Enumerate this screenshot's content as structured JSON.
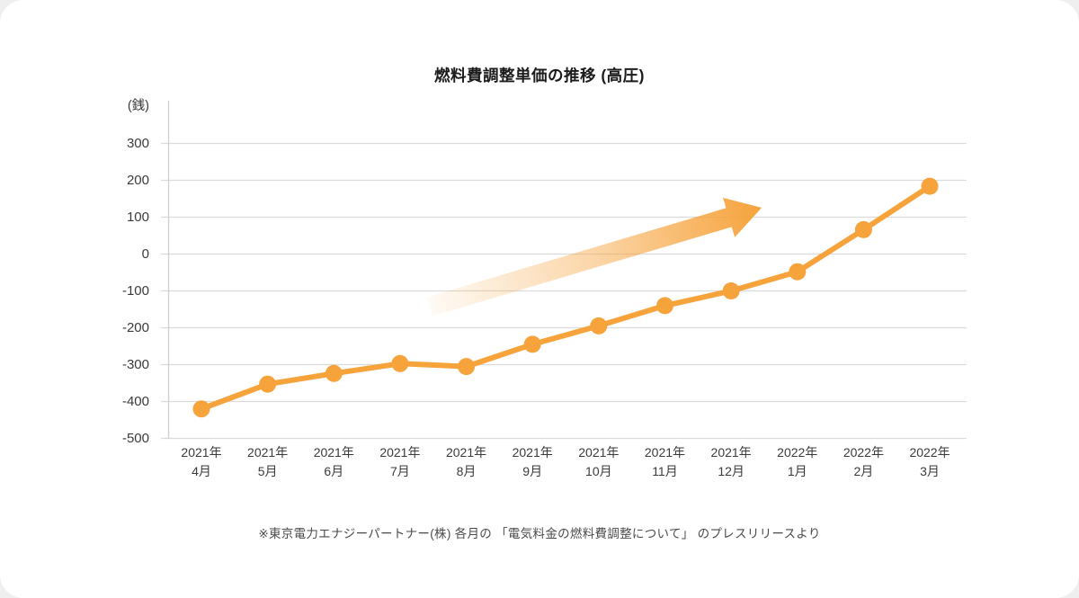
{
  "card": {
    "footnote": "※東京電力エナジーパートナー(株) 各月の 「電気料金の燃料費調整について」 のプレスリリースより"
  },
  "chart_data": {
    "type": "line",
    "title": "燃料費調整単価の推移 (高圧)",
    "unit_label": "(銭)",
    "ylabel": "銭",
    "xlabel": "",
    "categories": [
      {
        "year": "2021年",
        "month": "4月"
      },
      {
        "year": "2021年",
        "month": "5月"
      },
      {
        "year": "2021年",
        "month": "6月"
      },
      {
        "year": "2021年",
        "month": "7月"
      },
      {
        "year": "2021年",
        "month": "8月"
      },
      {
        "year": "2021年",
        "month": "9月"
      },
      {
        "year": "2021年",
        "month": "10月"
      },
      {
        "year": "2021年",
        "month": "11月"
      },
      {
        "year": "2021年",
        "month": "12月"
      },
      {
        "year": "2022年",
        "month": "1月"
      },
      {
        "year": "2022年",
        "month": "2月"
      },
      {
        "year": "2022年",
        "month": "3月"
      }
    ],
    "series": [
      {
        "name": "燃料費調整単価",
        "values": [
          -420,
          -353,
          -324,
          -297,
          -305,
          -245,
          -195,
          -140,
          -100,
          -48,
          66,
          184
        ]
      }
    ],
    "yticks": [
      300,
      200,
      100,
      0,
      -100,
      -200,
      -300,
      -400,
      -500
    ],
    "ylim": [
      -500,
      340
    ],
    "grid": true,
    "legend": "none",
    "annotations": [
      "upward-trend-arrow"
    ],
    "colors": {
      "line": "#F6A33C",
      "grid": "#DBDBDB",
      "axis": "#CFCFCF",
      "text": "#3a3a3a"
    }
  }
}
